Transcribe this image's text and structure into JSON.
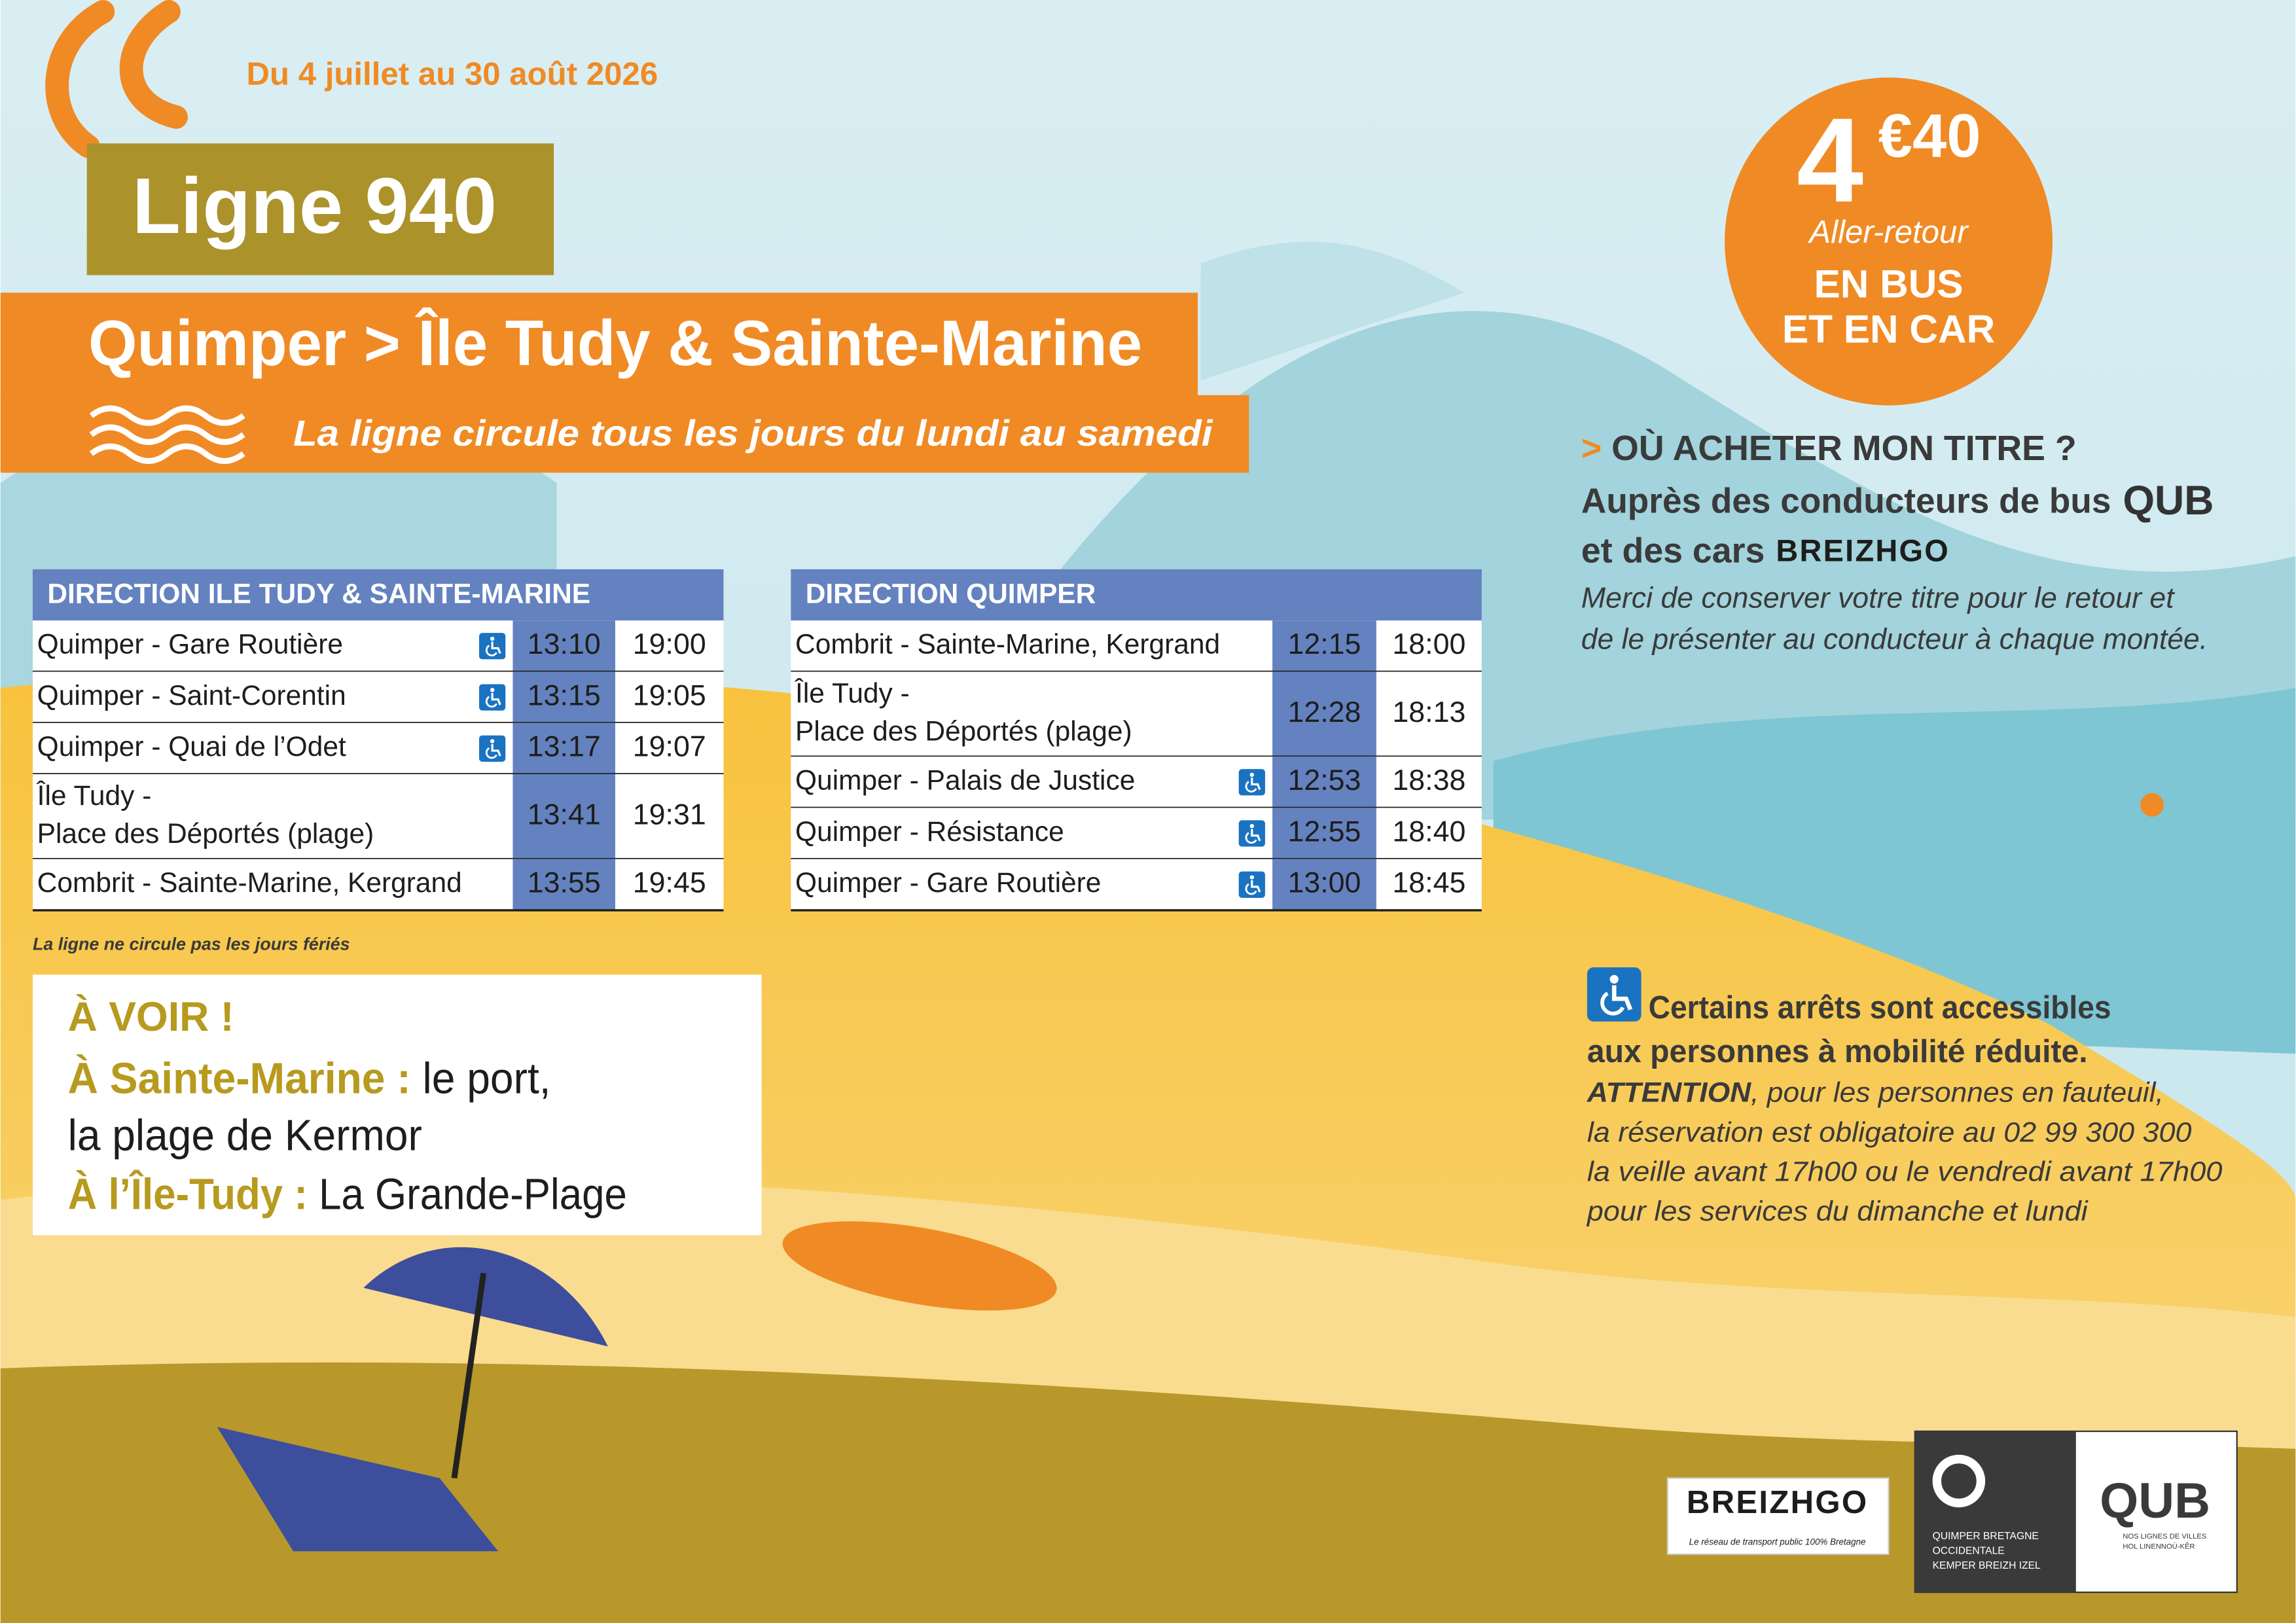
{
  "header": {
    "dates": "Du 4 juillet au 30 août 2026",
    "line": "Ligne 940",
    "route": "Quimper > Île Tudy & Sainte-Marine",
    "frequency": "La ligne circule tous les jours du lundi au samedi"
  },
  "price": {
    "euros": "4",
    "cents": "€40",
    "ticket": "Aller-retour",
    "modes": [
      "EN BUS",
      "ET EN CAR"
    ]
  },
  "purchase": {
    "marker": ">",
    "question": "OÙ ACHETER MON TITRE ?",
    "bus": "Auprès des conducteurs de bus",
    "bus_brand": "QUB",
    "coach": "et des cars",
    "coach_brand": "BREIZHGO",
    "note": [
      "Merci de conserver votre titre pour le retour et",
      "de le présenter au conducteur à chaque montée."
    ]
  },
  "timetables": [
    {
      "title": "DIRECTION ILE TUDY & SAINTE-MARINE",
      "rows": [
        {
          "stop": [
            "Quimper - Gare Routière"
          ],
          "accessible": true,
          "times": [
            "13:10",
            "19:00"
          ]
        },
        {
          "stop": [
            "Quimper - Saint-Corentin"
          ],
          "accessible": true,
          "times": [
            "13:15",
            "19:05"
          ]
        },
        {
          "stop": [
            "Quimper - Quai de l’Odet"
          ],
          "accessible": true,
          "times": [
            "13:17",
            "19:07"
          ]
        },
        {
          "stop": [
            "Île Tudy -",
            "Place des Déportés (plage)"
          ],
          "accessible": false,
          "times": [
            "13:41",
            "19:31"
          ]
        },
        {
          "stop": [
            "Combrit - Sainte-Marine, Kergrand"
          ],
          "accessible": false,
          "times": [
            "13:55",
            "19:45"
          ]
        }
      ]
    },
    {
      "title": "DIRECTION QUIMPER",
      "rows": [
        {
          "stop": [
            "Combrit - Sainte-Marine, Kergrand"
          ],
          "accessible": false,
          "times": [
            "12:15",
            "18:00"
          ]
        },
        {
          "stop": [
            "Île Tudy -",
            "Place des Déportés (plage)"
          ],
          "accessible": false,
          "times": [
            "12:28",
            "18:13"
          ]
        },
        {
          "stop": [
            "Quimper - Palais de Justice"
          ],
          "accessible": true,
          "times": [
            "12:53",
            "18:38"
          ]
        },
        {
          "stop": [
            "Quimper - Résistance"
          ],
          "accessible": true,
          "times": [
            "12:55",
            "18:40"
          ]
        },
        {
          "stop": [
            "Quimper - Gare Routière"
          ],
          "accessible": true,
          "times": [
            "13:00",
            "18:45"
          ]
        }
      ]
    }
  ],
  "footnote": "La ligne ne circule pas les jours fériés",
  "see": {
    "title": "À VOIR !",
    "places": [
      {
        "label": "À Sainte-Marine :",
        "text": [
          "le port,",
          "la plage de Kermor"
        ]
      },
      {
        "label": "À l’Île-Tudy :",
        "text": [
          "La Grande-Plage"
        ]
      }
    ]
  },
  "accessibility": {
    "headline": [
      "Certains arrêts sont accessibles",
      "aux personnes à mobilité réduite."
    ],
    "warning": "ATTENTION",
    "details": [
      ", pour les personnes en fauteuil,",
      "la réservation est obligatoire au 02 99 300 300",
      "la veille avant 17h00 ou le vendredi avant 17h00",
      "pour les services du dimanche et lundi"
    ]
  },
  "logos": {
    "breizhgo": "BREIZHGO",
    "breizhgo_tagline": "Le réseau de transport public 100% Bretagne",
    "qbo": [
      "QUIMPER BRETAGNE",
      "OCCIDENTALE",
      "KEMPER BREIZH IZEL"
    ],
    "qub": "QUB",
    "qub_tagline": [
      "NOS LIGNES DE VILLES",
      "HOL LINENNOÙ-KÊR"
    ]
  }
}
